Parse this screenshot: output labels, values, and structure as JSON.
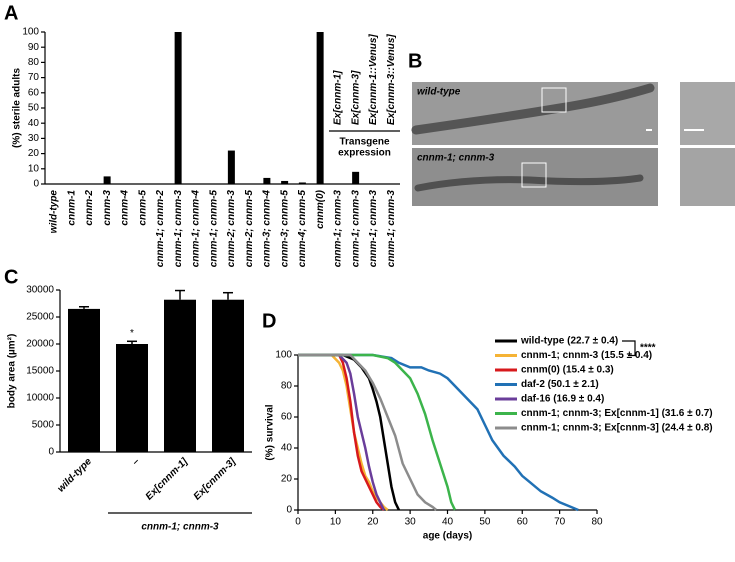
{
  "panel_labels": [
    "A",
    "B",
    "C",
    "D"
  ],
  "images": {
    "labels": [
      "wild-type",
      "cnnm-1; cnnm-3"
    ]
  },
  "chart_data": [
    {
      "type": "bar",
      "ylabel": "(%) sterile adults",
      "color": "#000000",
      "categories": [
        "wild-type",
        "cnnm-1",
        "cnnm-2",
        "cnnm-3",
        "cnnm-4",
        "cnnm-5",
        "cnnm-1; cnnm-2",
        "cnnm-1; cnnm-3",
        "cnnm-1; cnnm-4",
        "cnnm-1; cnnm-5",
        "cnnm-2; cnnm-3",
        "cnnm-2; cnnm-5",
        "cnnm-3; cnnm-4",
        "cnnm-3; cnnm-5",
        "cnnm-4; cnnm-5",
        "cnnm(0)",
        "cnnm-1; cnnm-3",
        "cnnm-1; cnnm-3",
        "cnnm-1; cnnm-3",
        "cnnm-1; cnnm-3"
      ],
      "values": [
        0,
        0,
        0,
        5,
        0,
        0,
        0,
        100,
        0,
        0,
        22,
        0,
        4,
        2,
        1,
        100,
        0,
        8,
        0,
        0
      ],
      "transgene_labels": [
        "Ex[cnnm-1]",
        "Ex[cnnm-3]",
        "Ex[cnnm-1::Venus]",
        "Ex[cnnm-3::Venus]"
      ],
      "transgene_caption": [
        "Transgene",
        "expression"
      ],
      "ylim": [
        0,
        100
      ],
      "yticks": [
        0,
        10,
        20,
        30,
        40,
        50,
        60,
        70,
        80,
        90,
        100
      ]
    },
    {
      "type": "bar",
      "ylabel": "body area (µm²)",
      "color": "#000000",
      "categories": [
        "wild-type",
        "–",
        "Ex[cnnm-1]",
        "Ex[cnnm-3]"
      ],
      "values": [
        26500,
        20000,
        28200,
        28200
      ],
      "errors": [
        400,
        500,
        1700,
        1300
      ],
      "annotation": "*",
      "group_label": "cnnm-1; cnnm-3",
      "ylim": [
        0,
        30000
      ],
      "yticks": [
        0,
        5000,
        10000,
        15000,
        20000,
        25000,
        30000
      ]
    },
    {
      "type": "line",
      "xlabel": "age (days)",
      "ylabel": "(%) survival",
      "annotation": "****",
      "xlim": [
        0,
        80
      ],
      "xticks": [
        0,
        10,
        20,
        30,
        40,
        50,
        60,
        70,
        80
      ],
      "ylim": [
        0,
        100
      ],
      "yticks": [
        0,
        20,
        40,
        60,
        80,
        100
      ],
      "series": [
        {
          "name": "wild-type (22.7 ± 0.4)",
          "color": "#000000",
          "x": [
            0,
            12,
            15,
            17,
            19,
            20,
            21,
            22,
            23,
            24,
            25,
            26,
            27
          ],
          "values": [
            100,
            100,
            97,
            92,
            85,
            78,
            70,
            60,
            45,
            30,
            15,
            5,
            0
          ]
        },
        {
          "name": "cnnm-1; cnnm-3 (15.5 ± 0.4)",
          "color": "#f5b335",
          "x": [
            0,
            9,
            11,
            12,
            13,
            14,
            15,
            16,
            17,
            18,
            19,
            20,
            21,
            22,
            23,
            24
          ],
          "values": [
            100,
            100,
            95,
            90,
            80,
            65,
            50,
            40,
            30,
            22,
            18,
            12,
            8,
            5,
            2,
            0
          ]
        },
        {
          "name": "cnnm(0) (15.4 ± 0.3)",
          "color": "#d7191c",
          "x": [
            0,
            11,
            12,
            13,
            14,
            15,
            16,
            17,
            18,
            19,
            20,
            21,
            22,
            23
          ],
          "values": [
            100,
            100,
            95,
            85,
            70,
            50,
            35,
            25,
            20,
            15,
            10,
            5,
            2,
            0
          ]
        },
        {
          "name": "daf-2 (50.1 ± 2.1)",
          "color": "#2171b5",
          "x": [
            0,
            20,
            25,
            27,
            30,
            33,
            35,
            38,
            40,
            42,
            44,
            46,
            48,
            50,
            52,
            55,
            58,
            60,
            62,
            65,
            68,
            70,
            73,
            75
          ],
          "values": [
            100,
            100,
            98,
            95,
            92,
            92,
            90,
            88,
            85,
            80,
            75,
            70,
            65,
            55,
            45,
            35,
            28,
            22,
            18,
            12,
            8,
            5,
            2,
            0
          ]
        },
        {
          "name": "daf-16 (16.9 ± 0.4)",
          "color": "#6a3d9a",
          "x": [
            0,
            11,
            13,
            14,
            15,
            16,
            17,
            18,
            19,
            20,
            21,
            22,
            23
          ],
          "values": [
            100,
            100,
            95,
            88,
            75,
            60,
            50,
            40,
            28,
            18,
            10,
            5,
            0
          ]
        },
        {
          "name": "cnnm-1; cnnm-3; Ex[cnnm-1] (31.6 ± 0.7)",
          "color": "#3cb44b",
          "x": [
            0,
            20,
            24,
            26,
            28,
            30,
            32,
            34,
            36,
            38,
            40,
            41,
            42
          ],
          "values": [
            100,
            100,
            98,
            95,
            90,
            85,
            75,
            62,
            45,
            30,
            15,
            5,
            0
          ]
        },
        {
          "name": "cnnm-1; cnnm-3; Ex[cnnm-3] (24.4 ± 0.8)",
          "color": "#8c8c8c",
          "x": [
            0,
            14,
            16,
            18,
            20,
            22,
            24,
            26,
            28,
            30,
            32,
            34,
            36,
            37
          ],
          "values": [
            100,
            100,
            95,
            90,
            82,
            72,
            60,
            48,
            30,
            20,
            10,
            5,
            2,
            0
          ]
        }
      ]
    }
  ]
}
